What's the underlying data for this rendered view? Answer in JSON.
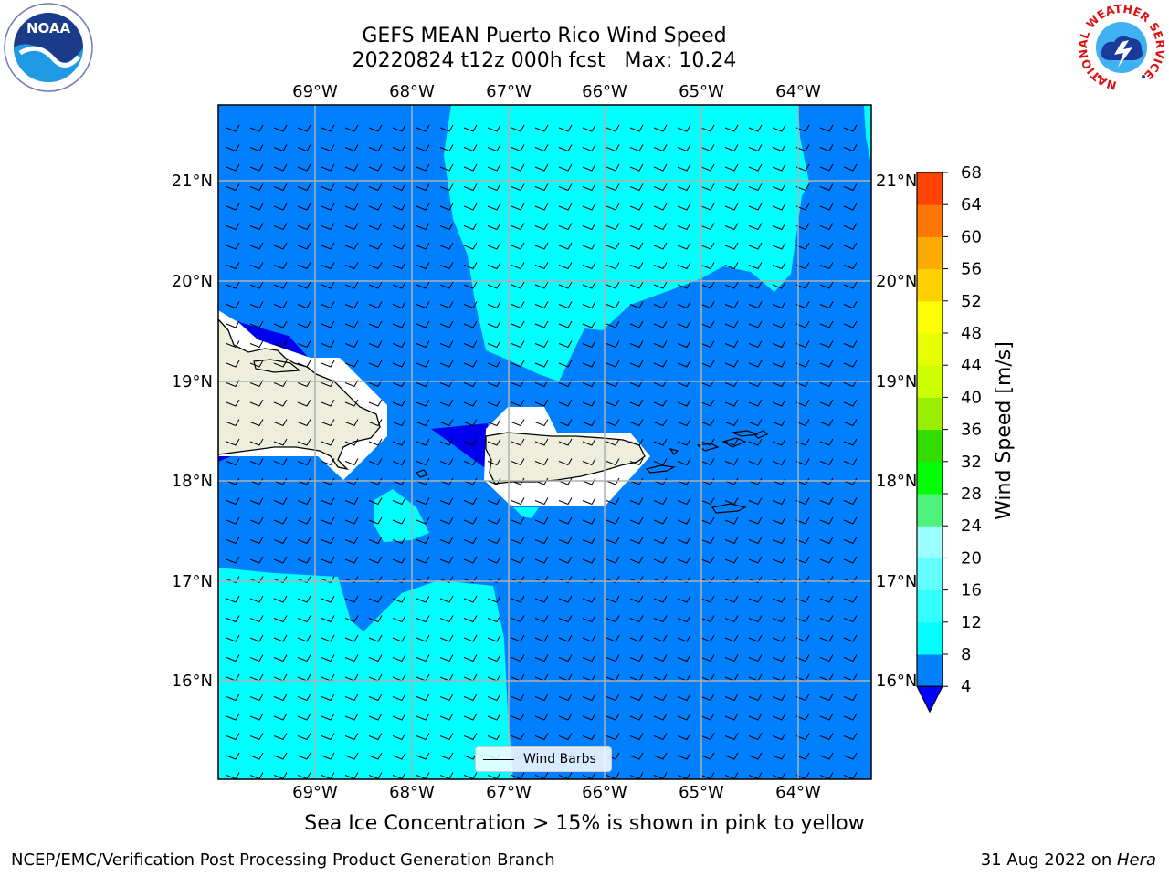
{
  "header": {
    "title_line1": "GEFS MEAN Puerto Rico Wind Speed",
    "title_line2": "20220824 t12z 000h fcst   Max: 10.24"
  },
  "logos": {
    "left": "NOAA",
    "right_ring_text": "NATIONAL WEATHER SERVICE"
  },
  "map": {
    "lon_labels": [
      "69°W",
      "68°W",
      "67°W",
      "66°W",
      "65°W",
      "64°W"
    ],
    "lat_labels": [
      "21°N",
      "20°N",
      "19°N",
      "18°N",
      "17°N",
      "16°N"
    ],
    "legend_label": "Wind Barbs"
  },
  "colorbar": {
    "label": "Wind Speed [m/s]",
    "ticks": [
      "4",
      "8",
      "12",
      "16",
      "20",
      "24",
      "28",
      "32",
      "36",
      "40",
      "44",
      "48",
      "52",
      "56",
      "60",
      "64",
      "68"
    ],
    "colors": [
      "#0080ff",
      "#00ffff",
      "#33ffff",
      "#66ffff",
      "#99ffff",
      "#4ff27a",
      "#00ff00",
      "#33dd00",
      "#99ee00",
      "#ccff00",
      "#e6ff00",
      "#ffff00",
      "#ffd000",
      "#ffaa00",
      "#ff7700",
      "#ff4400",
      "#ff1100",
      "#ff0000"
    ],
    "under_color": "#0000ff"
  },
  "colors": {
    "deep": "#0000ee",
    "blue": "#0080ff",
    "cyan": "#00ffff",
    "land": "#eeeedd"
  },
  "caption": "Sea Ice Concentration > 15% is shown in pink to yellow",
  "footer": {
    "left": "NCEP/EMC/Verification Post Processing Product Generation Branch",
    "right_date": "31 Aug 2022 on ",
    "right_host": "Hera"
  }
}
